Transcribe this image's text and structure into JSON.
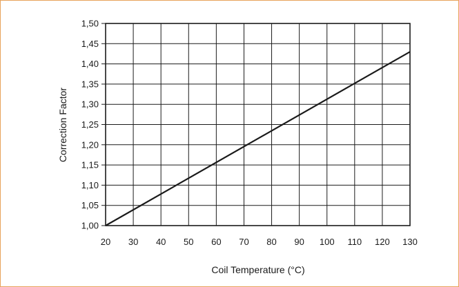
{
  "chart_data": {
    "type": "line",
    "title": "",
    "xlabel": "Coil Temperature (°C)",
    "ylabel": "Correction Factor",
    "xlim": [
      20,
      130
    ],
    "ylim": [
      1.0,
      1.5
    ],
    "x_ticks": [
      "20",
      "30",
      "40",
      "50",
      "60",
      "70",
      "80",
      "90",
      "100",
      "110",
      "120",
      "130"
    ],
    "y_ticks": [
      "1,00",
      "1,05",
      "1,10",
      "1,15",
      "1,20",
      "1,25",
      "1,30",
      "1,35",
      "1,40",
      "1,45",
      "1,50"
    ],
    "grid": true,
    "series": [
      {
        "x": [
          20,
          130
        ],
        "y": [
          1.0,
          1.43
        ]
      }
    ]
  },
  "colors": {
    "frame": "#e8a25a",
    "line": "#1a1a1a",
    "grid": "#1a1a1a"
  }
}
